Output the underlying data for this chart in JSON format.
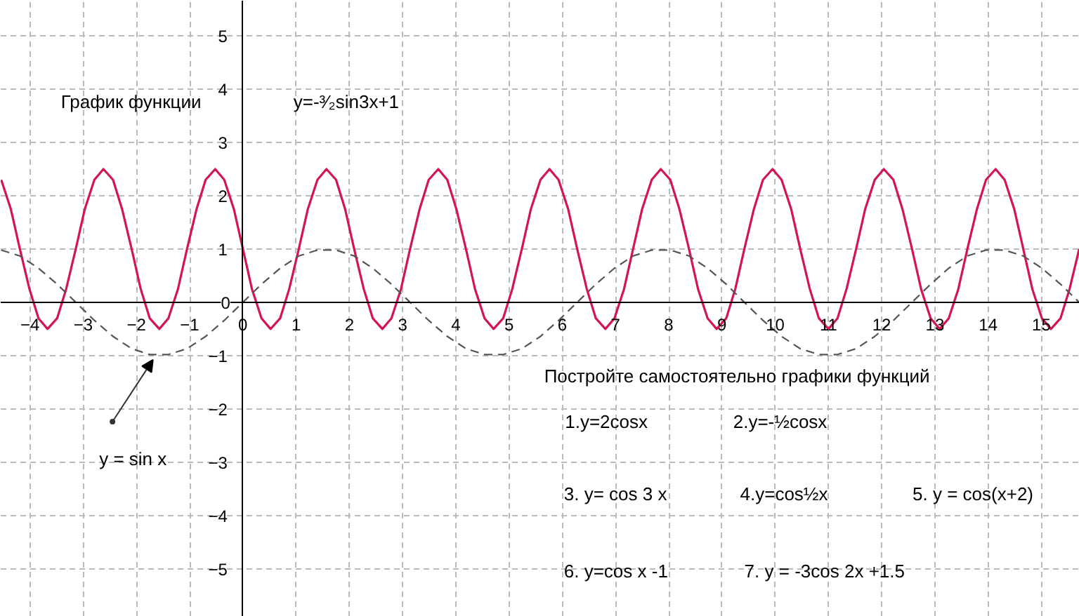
{
  "chart_data": {
    "type": "line",
    "title": "График  функции",
    "subtitle": "y=-³⁄₂sin3x+1",
    "annotations": [
      "y = sin x",
      "Постройте самостоятельно графики функций",
      "1.y=2cosx",
      "2.y=-½cosx",
      "3. y= cos 3 x",
      "4.y=cos½x",
      "5. y = cos(x+2)",
      "6. y=cos x -1",
      "7. y = -3cos 2x +1.5"
    ],
    "series": [
      {
        "color": "#d4145a",
        "line_style": "solid",
        "x": [
          -4.54,
          -4.36,
          -4.19,
          -4.01,
          -3.84,
          -3.67,
          -3.49,
          -3.32,
          -3.14,
          -2.97,
          -2.79,
          -2.62,
          -2.44,
          -2.27,
          -2.09,
          -1.92,
          -1.75,
          -1.57,
          -1.4,
          -1.22,
          -1.05,
          -0.87,
          -0.7,
          -0.52,
          -0.35,
          -0.17,
          0,
          0.17,
          0.35,
          0.52,
          0.7,
          0.87,
          1.05,
          1.22,
          1.4,
          1.57,
          1.75,
          1.92,
          2.09,
          2.27,
          2.44,
          2.62,
          2.79,
          2.97,
          3.14,
          3.32,
          3.49,
          3.67,
          3.84,
          4.01,
          4.19,
          4.36,
          4.54,
          4.71,
          4.89,
          5.06,
          5.24,
          5.41,
          5.59,
          5.76,
          5.93,
          6.11,
          6.28,
          6.46,
          6.63,
          6.81,
          6.98,
          7.16,
          7.33,
          7.5,
          7.68,
          7.85,
          8.03,
          8.2,
          8.38,
          8.55,
          8.73,
          8.9,
          9.08,
          9.25,
          9.42,
          9.6,
          9.77,
          9.95,
          10.12,
          10.3,
          10.47,
          10.65,
          10.82,
          11.0,
          11.17,
          11.34,
          11.52,
          11.69,
          11.87,
          12.04,
          12.22,
          12.39,
          12.57,
          12.74,
          12.92,
          13.09,
          13.26,
          13.44,
          13.61,
          13.79,
          13.96,
          14.14,
          14.31,
          14.49,
          14.66,
          14.83,
          15.01,
          15.18,
          15.36,
          15.53,
          15.71
        ],
        "values": [
          2.3,
          1.75,
          1,
          0.25,
          -0.3,
          -0.5,
          -0.3,
          0.25,
          1,
          1.75,
          2.3,
          2.5,
          2.3,
          1.75,
          1,
          0.25,
          -0.3,
          -0.5,
          -0.3,
          0.25,
          1,
          1.75,
          2.3,
          2.5,
          2.3,
          1.75,
          1,
          0.25,
          -0.3,
          -0.5,
          -0.3,
          0.25,
          1,
          1.75,
          2.3,
          2.5,
          2.3,
          1.75,
          1,
          0.25,
          -0.3,
          -0.5,
          -0.3,
          0.25,
          1,
          1.75,
          2.3,
          2.5,
          2.3,
          1.75,
          1,
          0.25,
          -0.3,
          -0.5,
          -0.3,
          0.25,
          1,
          1.75,
          2.3,
          2.5,
          2.3,
          1.75,
          1,
          0.25,
          -0.3,
          -0.5,
          -0.3,
          0.25,
          1,
          1.75,
          2.3,
          2.5,
          2.3,
          1.75,
          1,
          0.25,
          -0.3,
          -0.5,
          -0.3,
          0.25,
          1,
          1.75,
          2.3,
          2.5,
          2.3,
          1.75,
          1,
          0.25,
          -0.3,
          -0.5,
          -0.3,
          0.25,
          1,
          1.75,
          2.3,
          2.5,
          2.3,
          1.75,
          1,
          0.25,
          -0.3,
          -0.5,
          -0.3,
          0.25,
          1,
          1.75,
          2.3,
          2.5,
          2.3,
          1.75,
          1,
          0.25,
          -0.3,
          -0.5,
          -0.3,
          0.25,
          1
        ]
      },
      {
        "color": "#555555",
        "line_style": "dashed",
        "x": [
          -4.54,
          -4.19,
          -3.84,
          -3.49,
          -3.14,
          -2.79,
          -2.44,
          -2.09,
          -1.75,
          -1.4,
          -1.05,
          -0.7,
          -0.35,
          0,
          0.35,
          0.7,
          1.05,
          1.4,
          1.75,
          2.09,
          2.44,
          2.79,
          3.14,
          3.49,
          3.84,
          4.19,
          4.54,
          4.89,
          5.24,
          5.59,
          5.93,
          6.28,
          6.63,
          6.98,
          7.33,
          7.68,
          8.03,
          8.38,
          8.73,
          9.08,
          9.42,
          9.77,
          10.12,
          10.47,
          10.82,
          11.17,
          11.52,
          11.87,
          12.22,
          12.57,
          12.92,
          13.26,
          13.61,
          13.96,
          14.31,
          14.66,
          15.01,
          15.36,
          15.71
        ],
        "values": [
          0.98,
          0.87,
          0.64,
          0.34,
          0,
          -0.34,
          -0.64,
          -0.87,
          -0.98,
          -0.98,
          -0.87,
          -0.64,
          -0.34,
          0,
          0.34,
          0.64,
          0.87,
          0.98,
          0.98,
          0.87,
          0.64,
          0.34,
          0,
          -0.34,
          -0.64,
          -0.87,
          -0.98,
          -0.98,
          -0.87,
          -0.64,
          -0.34,
          0,
          0.34,
          0.64,
          0.87,
          0.98,
          0.98,
          0.87,
          0.64,
          0.34,
          0,
          -0.34,
          -0.64,
          -0.87,
          -0.98,
          -0.98,
          -0.87,
          -0.64,
          -0.34,
          0,
          0.34,
          0.64,
          0.87,
          0.98,
          0.98,
          0.87,
          0.64,
          0.34,
          0
        ]
      }
    ],
    "xlim": [
      -4.55,
      15.72
    ],
    "ylim": [
      -5.9,
      5.66
    ],
    "xticks": [
      -4,
      -3,
      -2,
      -1,
      0,
      1,
      2,
      3,
      4,
      5,
      6,
      7,
      8,
      9,
      10,
      11,
      12,
      13,
      14,
      15
    ],
    "yticks": [
      -5,
      -4,
      -3,
      -2,
      -1,
      0,
      1,
      2,
      3,
      4,
      5
    ],
    "grid": true,
    "marker": "none"
  }
}
